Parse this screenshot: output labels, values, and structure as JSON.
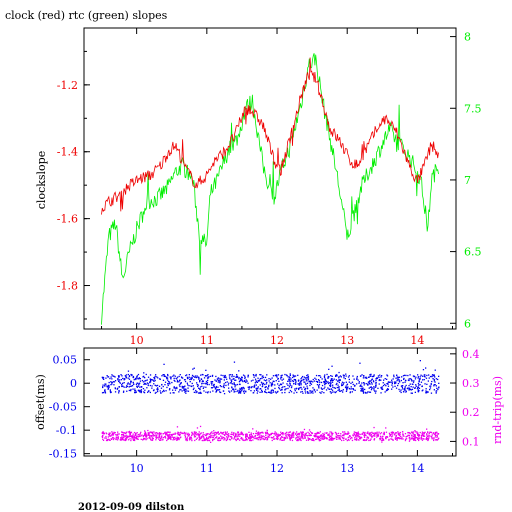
{
  "title": "clock (red) rtc (green) slopes",
  "footer": "2012-09-09 dilston",
  "colors": {
    "clock": "#ee0000",
    "rtc": "#00ee00",
    "offset": "#0000ee",
    "rtt": "#ee00ee",
    "axis": "#000000"
  },
  "chart_data": [
    {
      "type": "line",
      "title": "clock (red) rtc (green) slopes",
      "xlim": [
        9.25,
        14.55
      ],
      "x_ticks": [
        "10",
        "11",
        "12",
        "13",
        "14"
      ],
      "ylabel_left": "clockslope",
      "ylim_left": [
        -1.93,
        -1.03
      ],
      "y_ticks_left": [
        "-1.2",
        "-1.4",
        "-1.6",
        "-1.8"
      ],
      "ylim_right": [
        5.96,
        8.06
      ],
      "y_ticks_right": [
        "6",
        "6.5",
        "7",
        "7.5",
        "8"
      ],
      "grid": false,
      "series": [
        {
          "name": "clock",
          "axis": "left",
          "color": "#ee0000",
          "x": [
            9.5,
            9.6,
            9.75,
            9.9,
            10.05,
            10.2,
            10.35,
            10.45,
            10.55,
            10.7,
            10.85,
            11.0,
            11.1,
            11.25,
            11.4,
            11.55,
            11.65,
            11.8,
            11.95,
            12.05,
            12.2,
            12.35,
            12.45,
            12.55,
            12.65,
            12.75,
            12.9,
            13.05,
            13.15,
            13.3,
            13.45,
            13.55,
            13.7,
            13.9,
            14.0,
            14.1,
            14.2,
            14.3
          ],
          "y": [
            -1.57,
            -1.55,
            -1.53,
            -1.5,
            -1.48,
            -1.47,
            -1.44,
            -1.4,
            -1.38,
            -1.45,
            -1.5,
            -1.47,
            -1.43,
            -1.4,
            -1.35,
            -1.27,
            -1.28,
            -1.32,
            -1.42,
            -1.46,
            -1.35,
            -1.23,
            -1.17,
            -1.18,
            -1.25,
            -1.33,
            -1.37,
            -1.43,
            -1.44,
            -1.38,
            -1.32,
            -1.3,
            -1.34,
            -1.45,
            -1.49,
            -1.44,
            -1.38,
            -1.41
          ]
        },
        {
          "name": "rtc",
          "axis": "right",
          "color": "#00ee00",
          "x": [
            9.5,
            9.6,
            9.7,
            9.8,
            9.9,
            10.0,
            10.15,
            10.3,
            10.45,
            10.55,
            10.65,
            10.8,
            10.9,
            11.0,
            11.05,
            11.15,
            11.3,
            11.45,
            11.55,
            11.65,
            11.8,
            11.95,
            12.05,
            12.2,
            12.35,
            12.45,
            12.55,
            12.65,
            12.75,
            12.85,
            13.0,
            13.1,
            13.2,
            13.3,
            13.45,
            13.6,
            13.75,
            13.9,
            14.05,
            14.15,
            14.2,
            14.3
          ],
          "y": [
            6.05,
            6.6,
            6.7,
            6.3,
            6.5,
            6.65,
            6.85,
            6.87,
            6.95,
            7.05,
            7.1,
            7.0,
            6.6,
            6.55,
            6.9,
            7.0,
            7.2,
            7.3,
            7.5,
            7.55,
            7.1,
            6.85,
            7.05,
            7.25,
            7.55,
            7.8,
            7.85,
            7.55,
            7.3,
            7.05,
            6.6,
            6.75,
            6.95,
            7.05,
            7.2,
            7.35,
            7.25,
            7.15,
            7.0,
            6.65,
            7.0,
            7.1
          ]
        }
      ]
    },
    {
      "type": "scatter",
      "xlim": [
        9.25,
        14.55
      ],
      "x_ticks": [
        "10",
        "11",
        "12",
        "13",
        "14"
      ],
      "ylabel_left": "offset(ms)",
      "ylim_left": [
        -0.155,
        0.075
      ],
      "y_ticks_left": [
        "0.05",
        "0",
        "-0.05",
        "-0.1",
        "-0.15"
      ],
      "ylabel_right": "rnd-trip(ms)",
      "ylim_right": [
        0.05,
        0.42
      ],
      "y_ticks_right": [
        "0.4",
        "0.3",
        "0.2",
        "0.1"
      ],
      "grid": false,
      "series": [
        {
          "name": "offset",
          "axis": "left",
          "color": "#0000ee",
          "x_range": [
            9.5,
            14.3
          ],
          "center": 0.0,
          "spread": 0.02
        },
        {
          "name": "rnd-trip",
          "axis": "right",
          "color": "#ee00ee",
          "x_range": [
            9.5,
            14.3
          ],
          "center": 0.12,
          "spread": 0.015
        }
      ]
    }
  ]
}
